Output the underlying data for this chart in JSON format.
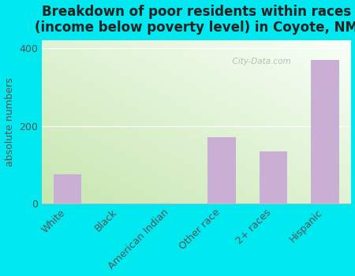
{
  "title": "Breakdown of poor residents within races\n(income below poverty level) in Coyote, NM",
  "categories": [
    "White",
    "Black",
    "American Indian",
    "Other race",
    "2+ races",
    "Hispanic"
  ],
  "values": [
    75,
    0,
    0,
    170,
    135,
    370
  ],
  "bar_color": "#c9afd4",
  "ylabel": "absolute numbers",
  "ylim": [
    0,
    420
  ],
  "yticks": [
    0,
    200,
    400
  ],
  "title_fontsize": 12,
  "label_fontsize": 9,
  "tick_fontsize": 9,
  "bg_grad_bottom_left": "#c8e6b0",
  "bg_grad_top_right": "#f5fdf0",
  "outer_bg": "#00e8f0",
  "watermark": "  City-Data.com"
}
